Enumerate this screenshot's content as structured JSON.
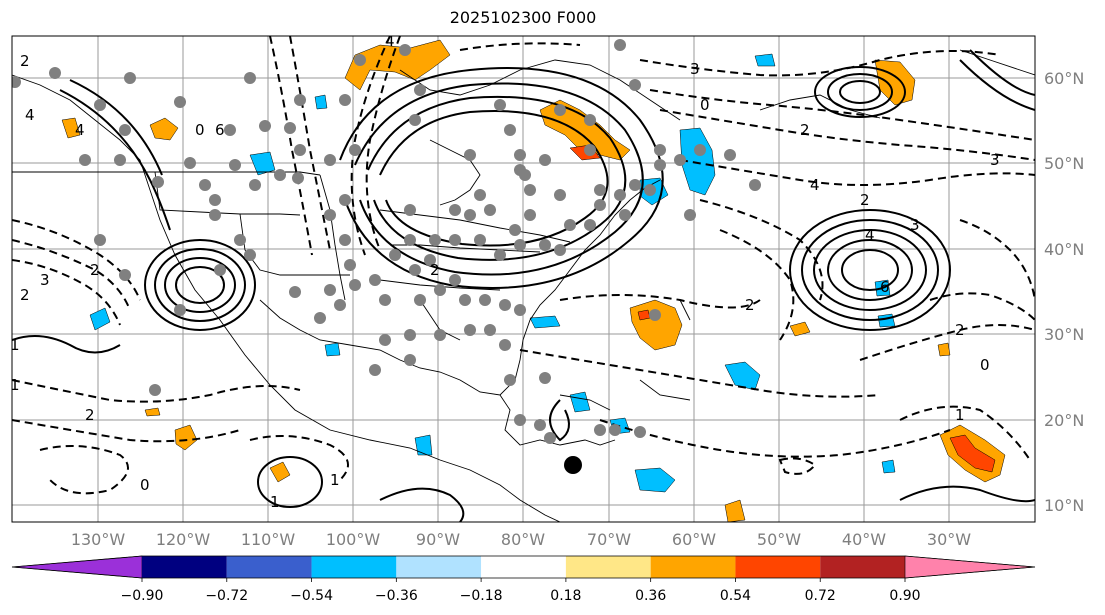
{
  "title": "2025102300 F000",
  "lat_labels": [
    "60°N",
    "50°N",
    "40°N",
    "30°N",
    "20°N",
    "10°N"
  ],
  "lon_labels": [
    "130°W",
    "120°W",
    "110°W",
    "100°W",
    "90°W",
    "80°W",
    "70°W",
    "60°W",
    "50°W",
    "40°W",
    "30°W"
  ],
  "colorbar": {
    "colors": [
      "#9b30d9",
      "#000080",
      "#3a5fcd",
      "#00bfff",
      "#b0e2ff",
      "#ffffff",
      "#ffe787",
      "#ffa500",
      "#ff4500",
      "#b22222",
      "#ff82ab"
    ],
    "tick_labels": [
      "−0.90",
      "−0.72",
      "−0.54",
      "−0.36",
      "−0.18",
      "0.18",
      "0.36",
      "0.54",
      "0.72",
      "0.90"
    ]
  },
  "contour_labels": [
    "4",
    "4",
    "4",
    "2",
    "2",
    "0",
    "3",
    "3",
    "2",
    "0",
    "1",
    "1",
    "2",
    "0",
    "1",
    "1",
    "4",
    "3",
    "6",
    "2",
    "2",
    "0",
    "1",
    "4",
    "2",
    "6",
    "3",
    "2",
    "2"
  ],
  "marker_note": ""
}
